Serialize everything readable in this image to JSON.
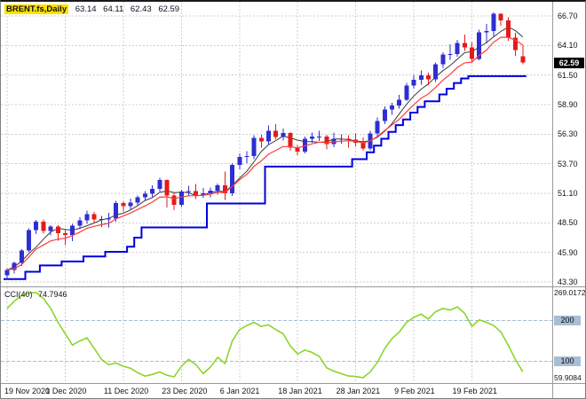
{
  "header": {
    "symbol": "BRENT.fs,Daily",
    "open": "63.14",
    "high": "64.11",
    "low": "62.43",
    "close": "62.59"
  },
  "indicator": {
    "label": "CCI(40)",
    "current_value": "74.7946",
    "max": "269.0172",
    "min": "59.9084",
    "level_labels": [
      "200",
      "100"
    ]
  },
  "colors": {
    "bull": "#2e2ed2",
    "bear": "#e31b1b",
    "step_line": "#0000dd",
    "fast_ma": "#ff3b3b",
    "slow_ma": "#3a3a3a",
    "cci_line": "#8cd52a",
    "level_line": "#a9bdd6",
    "grid": "#cfcfcf",
    "price_badge_bg": "#000000",
    "price_badge_text": "#ffffff",
    "symbol_highlight": "#ffe100"
  },
  "chart_data": {
    "type": "candlestick",
    "title": "BRENT.fs,Daily",
    "y_axis": {
      "grid_values": [
        66.7,
        64.1,
        61.5,
        58.9,
        56.3,
        53.7,
        51.1,
        48.5,
        45.9,
        43.3
      ],
      "labels": [
        "66.70",
        "64.10",
        "61.50",
        "58.90",
        "56.30",
        "53.70",
        "51.10",
        "48.50",
        "45.90",
        "43.30"
      ]
    },
    "x_axis": {
      "ticks": [
        {
          "label": "19 Nov 2020",
          "index": 0
        },
        {
          "label": "1 Dec 2020",
          "index": 8
        },
        {
          "label": "11 Dec 2020",
          "index": 16
        },
        {
          "label": "23 Dec 2020",
          "index": 24
        },
        {
          "label": "6 Jan 2021",
          "index": 32
        },
        {
          "label": "18 Jan 2021",
          "index": 40
        },
        {
          "label": "28 Jan 2021",
          "index": 48
        },
        {
          "label": "9 Feb 2021",
          "index": 56
        },
        {
          "label": "19 Feb 2021",
          "index": 64
        }
      ]
    },
    "ohlc": [
      [
        43.9,
        44.52,
        43.52,
        44.34
      ],
      [
        44.34,
        45.1,
        44.05,
        44.96
      ],
      [
        44.96,
        46.2,
        44.7,
        46.06
      ],
      [
        46.06,
        48.0,
        45.9,
        47.86
      ],
      [
        47.86,
        48.75,
        47.5,
        48.61
      ],
      [
        48.61,
        48.8,
        47.55,
        47.8
      ],
      [
        47.8,
        48.3,
        47.4,
        48.18
      ],
      [
        48.18,
        48.3,
        46.92,
        47.59
      ],
      [
        47.59,
        47.9,
        46.55,
        47.42
      ],
      [
        47.42,
        48.4,
        46.9,
        48.25
      ],
      [
        48.25,
        49.0,
        47.95,
        48.71
      ],
      [
        48.71,
        49.58,
        48.4,
        49.25
      ],
      [
        49.25,
        49.45,
        48.45,
        48.79
      ],
      [
        48.79,
        49.1,
        48.15,
        48.84
      ],
      [
        48.84,
        49.4,
        48.1,
        48.86
      ],
      [
        48.86,
        50.45,
        48.6,
        50.25
      ],
      [
        50.25,
        50.4,
        49.5,
        49.97
      ],
      [
        49.97,
        50.65,
        49.6,
        50.29
      ],
      [
        50.29,
        50.9,
        49.95,
        50.76
      ],
      [
        50.76,
        51.3,
        50.45,
        51.08
      ],
      [
        51.08,
        51.8,
        50.8,
        51.5
      ],
      [
        51.5,
        52.48,
        51.25,
        52.26
      ],
      [
        52.26,
        52.3,
        49.85,
        50.91
      ],
      [
        50.91,
        51.2,
        49.6,
        50.08
      ],
      [
        50.08,
        51.4,
        49.9,
        51.24
      ],
      [
        51.24,
        51.75,
        50.9,
        51.29
      ],
      [
        51.29,
        51.9,
        50.6,
        50.91
      ],
      [
        50.91,
        51.55,
        50.7,
        51.09
      ],
      [
        51.09,
        51.6,
        50.75,
        51.34
      ],
      [
        51.34,
        51.95,
        51.0,
        51.8
      ],
      [
        51.8,
        53.0,
        50.52,
        51.09
      ],
      [
        51.09,
        53.75,
        50.85,
        53.6
      ],
      [
        53.6,
        54.6,
        53.2,
        54.3
      ],
      [
        54.3,
        54.8,
        53.75,
        54.38
      ],
      [
        54.38,
        56.2,
        54.1,
        55.99
      ],
      [
        55.99,
        56.25,
        55.1,
        55.66
      ],
      [
        55.66,
        57.05,
        55.4,
        56.58
      ],
      [
        56.58,
        57.2,
        55.85,
        56.06
      ],
      [
        56.06,
        56.8,
        55.75,
        56.42
      ],
      [
        56.42,
        56.5,
        54.85,
        55.1
      ],
      [
        55.1,
        55.35,
        54.45,
        54.75
      ],
      [
        54.75,
        56.1,
        54.6,
        55.9
      ],
      [
        55.9,
        56.45,
        55.55,
        56.08
      ],
      [
        56.08,
        56.6,
        55.7,
        56.1
      ],
      [
        56.1,
        56.25,
        54.95,
        55.41
      ],
      [
        55.41,
        56.45,
        55.15,
        55.88
      ],
      [
        55.88,
        56.3,
        55.45,
        55.91
      ],
      [
        55.91,
        56.2,
        55.1,
        55.81
      ],
      [
        55.81,
        56.35,
        55.25,
        55.53
      ],
      [
        55.53,
        56.0,
        54.85,
        55.04
      ],
      [
        55.04,
        56.6,
        54.9,
        56.35
      ],
      [
        56.35,
        57.75,
        56.1,
        57.46
      ],
      [
        57.46,
        58.75,
        57.2,
        58.46
      ],
      [
        58.46,
        59.05,
        58.0,
        58.84
      ],
      [
        58.84,
        59.75,
        58.55,
        59.34
      ],
      [
        59.34,
        60.8,
        59.2,
        60.56
      ],
      [
        60.56,
        61.5,
        60.3,
        61.09
      ],
      [
        61.09,
        61.9,
        60.65,
        61.47
      ],
      [
        61.47,
        61.7,
        60.6,
        61.14
      ],
      [
        61.14,
        62.6,
        60.9,
        62.43
      ],
      [
        62.43,
        63.5,
        62.15,
        63.3
      ],
      [
        63.3,
        64.2,
        62.85,
        63.35
      ],
      [
        63.35,
        64.6,
        63.1,
        64.34
      ],
      [
        64.34,
        65.05,
        63.6,
        63.93
      ],
      [
        63.93,
        64.4,
        62.65,
        62.91
      ],
      [
        62.91,
        65.5,
        62.8,
        65.24
      ],
      [
        65.24,
        66.0,
        64.3,
        65.37
      ],
      [
        65.37,
        67.0,
        64.85,
        66.88
      ],
      [
        66.88,
        66.95,
        65.85,
        66.3
      ],
      [
        66.3,
        66.6,
        64.5,
        64.8
      ],
      [
        64.8,
        65.2,
        63.2,
        63.69
      ],
      [
        63.14,
        64.11,
        62.43,
        62.59
      ]
    ],
    "step_line": [
      43.55,
      43.55,
      43.55,
      44.2,
      44.2,
      44.75,
      44.75,
      44.75,
      45.1,
      45.1,
      45.1,
      45.55,
      45.55,
      45.55,
      45.95,
      45.95,
      45.95,
      46.4,
      47.2,
      48.1,
      48.1,
      48.1,
      48.1,
      48.1,
      48.1,
      48.1,
      48.1,
      48.1,
      50.2,
      50.2,
      50.2,
      50.2,
      50.2,
      50.2,
      50.2,
      50.2,
      53.45,
      53.45,
      53.45,
      53.45,
      53.45,
      53.45,
      53.45,
      53.45,
      53.45,
      53.45,
      53.45,
      53.45,
      54.1,
      54.1,
      54.7,
      55.3,
      55.9,
      56.5,
      57.1,
      57.6,
      58.2,
      58.7,
      59.2,
      59.2,
      59.8,
      60.3,
      60.8,
      61.2,
      61.4,
      61.4,
      61.4,
      61.4,
      61.4,
      61.4,
      61.4,
      61.4
    ],
    "indicator_pane": {
      "name": "CCI",
      "period": 40,
      "levels": [
        200,
        100
      ],
      "range_max": 269.0172,
      "range_min": 59.9084,
      "values": [
        230,
        248,
        262,
        268,
        269.0172,
        255,
        230,
        196,
        168,
        140,
        150,
        158,
        132,
        105,
        92,
        96,
        88,
        83,
        72,
        64,
        68,
        74,
        66,
        62,
        88,
        105,
        92,
        70,
        86,
        110,
        95,
        150,
        178,
        188,
        196,
        186,
        190,
        178,
        168,
        138,
        118,
        128,
        122,
        112,
        84,
        76,
        70,
        64,
        63,
        59.9084,
        74,
        98,
        132,
        156,
        172,
        196,
        208,
        216,
        204,
        222,
        230,
        226,
        234,
        218,
        186,
        202,
        196,
        188,
        172,
        140,
        104,
        74.7946
      ]
    }
  }
}
